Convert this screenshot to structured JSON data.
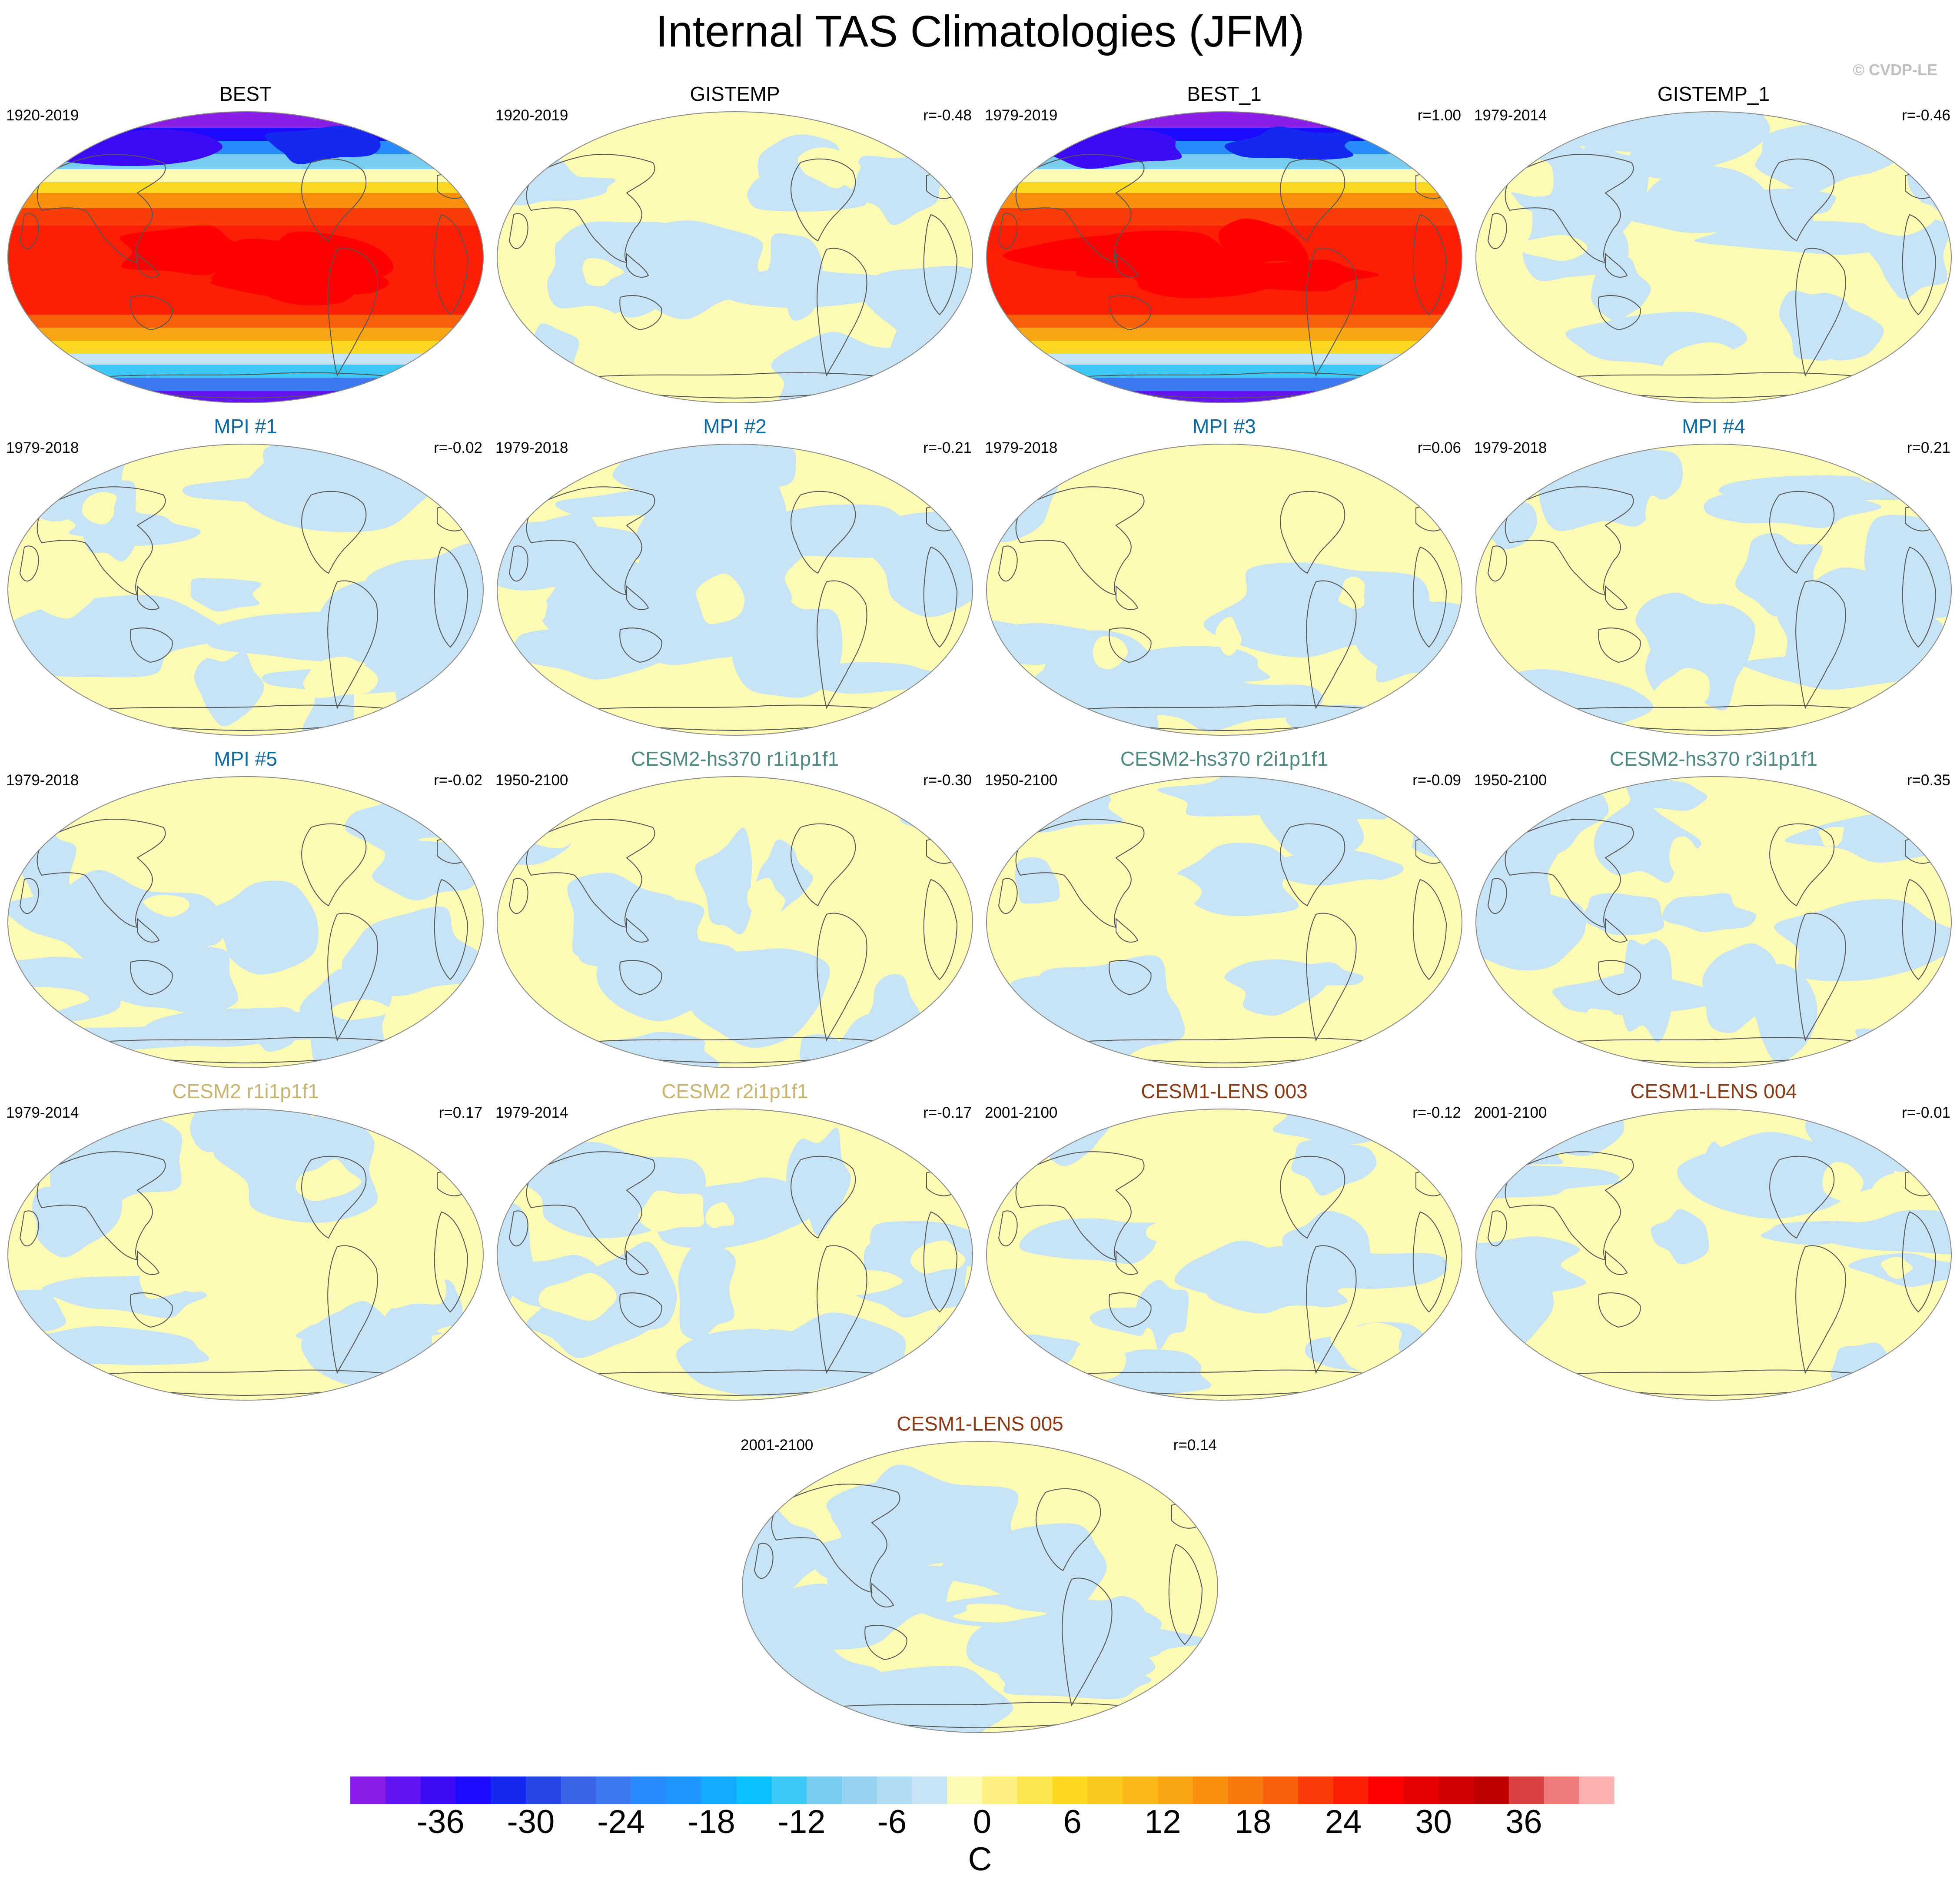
{
  "page": {
    "title": "Internal TAS Climatologies (JFM)",
    "credit": "© CVDP-LE"
  },
  "colors": {
    "land_outline": "#555555",
    "neg_fill": "#c6e4f6",
    "pos_fill": "#fefbb4",
    "title_black": "#000000",
    "title_mpi": "#0e6aa0",
    "title_cesm2hs": "#4e8a82",
    "title_cesm2": "#c7b46e",
    "title_cesm1": "#8a3a14"
  },
  "panels": [
    {
      "title": "BEST",
      "years": "1920-2019",
      "corr": "",
      "title_color": "#000000",
      "map_type": "climatology"
    },
    {
      "title": "GISTEMP",
      "years": "1920-2019",
      "corr": "r=-0.48",
      "title_color": "#000000",
      "map_type": "anomaly"
    },
    {
      "title": "BEST_1",
      "years": "1979-2019",
      "corr": "r=1.00",
      "title_color": "#000000",
      "map_type": "climatology"
    },
    {
      "title": "GISTEMP_1",
      "years": "1979-2014",
      "corr": "r=-0.46",
      "title_color": "#000000",
      "map_type": "anomaly"
    },
    {
      "title": "MPI #1",
      "years": "1979-2018",
      "corr": "r=-0.02",
      "title_color": "#0e6aa0",
      "map_type": "anomaly"
    },
    {
      "title": "MPI #2",
      "years": "1979-2018",
      "corr": "r=-0.21",
      "title_color": "#0e6aa0",
      "map_type": "anomaly"
    },
    {
      "title": "MPI #3",
      "years": "1979-2018",
      "corr": "r=0.06",
      "title_color": "#0e6aa0",
      "map_type": "anomaly"
    },
    {
      "title": "MPI #4",
      "years": "1979-2018",
      "corr": "r=0.21",
      "title_color": "#0e6aa0",
      "map_type": "anomaly"
    },
    {
      "title": "MPI #5",
      "years": "1979-2018",
      "corr": "r=-0.02",
      "title_color": "#0e6aa0",
      "map_type": "anomaly"
    },
    {
      "title": "CESM2-hs370 r1i1p1f1",
      "years": "1950-2100",
      "corr": "r=-0.30",
      "title_color": "#4e8a82",
      "map_type": "anomaly"
    },
    {
      "title": "CESM2-hs370 r2i1p1f1",
      "years": "1950-2100",
      "corr": "r=-0.09",
      "title_color": "#4e8a82",
      "map_type": "anomaly"
    },
    {
      "title": "CESM2-hs370 r3i1p1f1",
      "years": "1950-2100",
      "corr": "r=0.35",
      "title_color": "#4e8a82",
      "map_type": "anomaly"
    },
    {
      "title": "CESM2 r1i1p1f1",
      "years": "1979-2014",
      "corr": "r=0.17",
      "title_color": "#c7b46e",
      "map_type": "anomaly"
    },
    {
      "title": "CESM2 r2i1p1f1",
      "years": "1979-2014",
      "corr": "r=-0.17",
      "title_color": "#c7b46e",
      "map_type": "anomaly"
    },
    {
      "title": "CESM1-LENS 003",
      "years": "2001-2100",
      "corr": "r=-0.12",
      "title_color": "#8a3a14",
      "map_type": "anomaly"
    },
    {
      "title": "CESM1-LENS 004",
      "years": "2001-2100",
      "corr": "r=-0.01",
      "title_color": "#8a3a14",
      "map_type": "anomaly"
    },
    {
      "title": "CESM1-LENS 005",
      "years": "2001-2100",
      "corr": "r=0.14",
      "title_color": "#8a3a14",
      "map_type": "anomaly"
    }
  ],
  "colorbar": {
    "unit": "C",
    "tick_labels": [
      "-36",
      "-30",
      "-24",
      "-18",
      "-12",
      "-6",
      "0",
      "6",
      "12",
      "18",
      "24",
      "30",
      "36"
    ],
    "levels_min": -42,
    "levels_max": 42,
    "level_step": 2,
    "colors": [
      "#8a1ee6",
      "#6414f0",
      "#3c0af5",
      "#1e0aff",
      "#1428f0",
      "#2846e8",
      "#3c64e6",
      "#3c78f0",
      "#288cff",
      "#1e96ff",
      "#14aaff",
      "#0ac0ff",
      "#3cc8f5",
      "#78ccf0",
      "#96d2f0",
      "#afdcf2",
      "#c6e4f6",
      "#fefbb4",
      "#fdf080",
      "#fde650",
      "#fcd823",
      "#fbc91e",
      "#fab818",
      "#faa514",
      "#f98f0f",
      "#f8780c",
      "#f85f0a",
      "#fa3c08",
      "#fc1e05",
      "#ff0000",
      "#e60000",
      "#d20000",
      "#be0000",
      "#d94040",
      "#ee7a7a",
      "#ffb0b0"
    ]
  }
}
